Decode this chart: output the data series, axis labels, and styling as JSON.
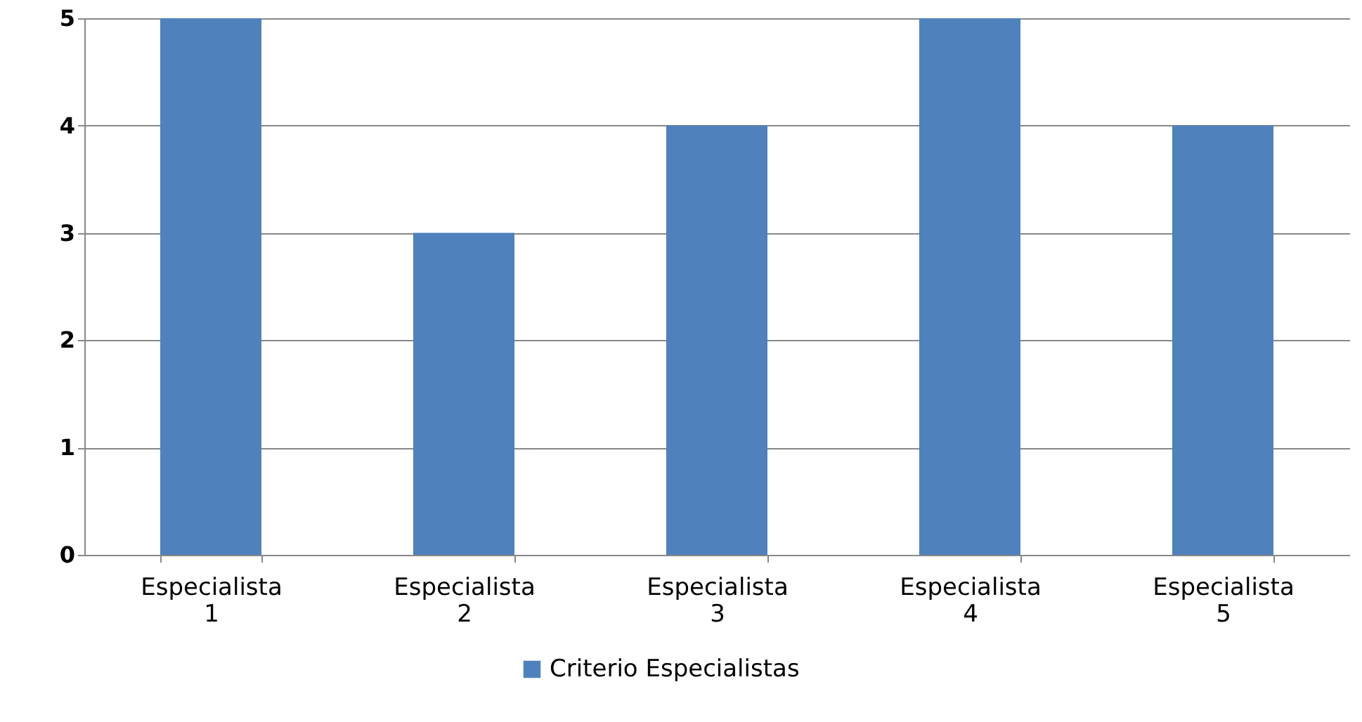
{
  "chart_data": {
    "type": "bar",
    "categories": [
      "Especialista 1",
      "Especialista 2",
      "Especialista 3",
      "Especialista 4",
      "Especialista 5"
    ],
    "series": [
      {
        "name": "Criterio Especialistas",
        "color": "#4f81bd",
        "values": [
          5,
          3,
          4,
          5,
          4
        ]
      }
    ],
    "ylim": [
      0,
      5
    ],
    "yticks": [
      0,
      1,
      2,
      3,
      4,
      5
    ],
    "grid": "y",
    "legend": "bottom"
  }
}
